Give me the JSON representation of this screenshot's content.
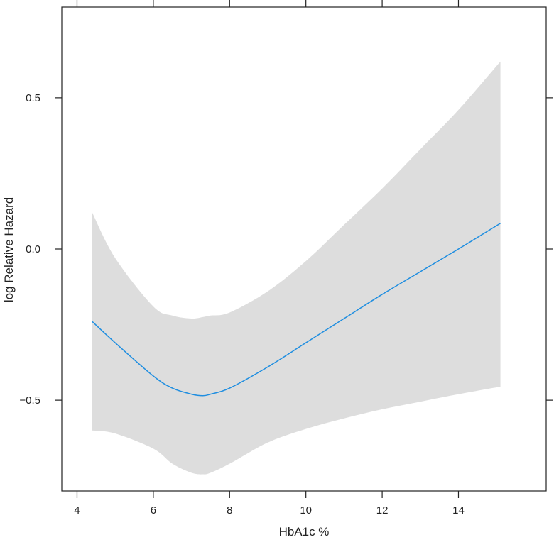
{
  "chart_data": {
    "type": "line",
    "title": "",
    "xlabel": "HbA1c %",
    "ylabel": "log Relative Hazard",
    "xlim": [
      3.6,
      16.3
    ],
    "ylim": [
      -0.8,
      0.8
    ],
    "x_ticks": [
      4,
      6,
      8,
      10,
      12,
      14
    ],
    "x_tick_labels": [
      "4",
      "6",
      "8",
      "10",
      "12",
      "14"
    ],
    "y_ticks": [
      -0.5,
      0.0,
      0.5
    ],
    "y_tick_labels": [
      "−0.5",
      "0.0",
      "0.5"
    ],
    "grid": false,
    "legend": "none",
    "colors": {
      "line": "#1f8ee0",
      "band": "#dddddd",
      "axis": "#222222"
    },
    "series": [
      {
        "x": [
          4.4,
          5.0,
          6.0,
          6.5,
          7.0,
          7.3,
          7.5,
          8.0,
          9.0,
          10.0,
          11.0,
          12.0,
          13.0,
          14.0,
          15.1
        ],
        "y": [
          -0.24,
          -0.31,
          -0.42,
          -0.46,
          -0.48,
          -0.485,
          -0.48,
          -0.46,
          -0.39,
          -0.31,
          -0.23,
          -0.15,
          -0.075,
          0.0,
          0.085
        ],
        "lower": [
          -0.6,
          -0.61,
          -0.66,
          -0.71,
          -0.74,
          -0.745,
          -0.74,
          -0.71,
          -0.64,
          -0.595,
          -0.56,
          -0.53,
          -0.505,
          -0.48,
          -0.455
        ],
        "upper": [
          0.12,
          -0.03,
          -0.19,
          -0.22,
          -0.23,
          -0.225,
          -0.22,
          -0.21,
          -0.14,
          -0.04,
          0.08,
          0.2,
          0.33,
          0.46,
          0.62
        ]
      }
    ]
  }
}
